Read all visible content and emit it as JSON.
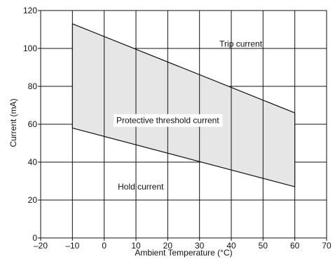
{
  "chart_data": {
    "type": "area",
    "xlabel": "Ambient Temperature (°C)",
    "ylabel": "Current (mA)",
    "xlim": [
      -20,
      70
    ],
    "ylim": [
      0,
      120
    ],
    "x_ticks": [
      "–20",
      "–10",
      "0",
      "10",
      "20",
      "30",
      "40",
      "50",
      "60",
      "70"
    ],
    "x_tick_values": [
      -20,
      -10,
      0,
      10,
      20,
      30,
      40,
      50,
      60,
      70
    ],
    "y_ticks": [
      "0",
      "20",
      "40",
      "60",
      "80",
      "100",
      "120"
    ],
    "y_tick_values": [
      0,
      20,
      40,
      60,
      80,
      100,
      120
    ],
    "grid": true,
    "series": [
      {
        "name": "Trip current",
        "x": [
          -10,
          60
        ],
        "y": [
          113,
          66
        ]
      },
      {
        "name": "Hold current",
        "x": [
          -10,
          60
        ],
        "y": [
          58,
          27
        ]
      }
    ],
    "band": {
      "label": "Protective threshold current",
      "fill": "#e6e6e6"
    },
    "annotations": {
      "trip": {
        "text": "Trip current",
        "x": 43,
        "y": 101
      },
      "band": {
        "text": "Protective threshold current",
        "x": 20,
        "y": 62
      },
      "hold": {
        "text": "Hold current",
        "x": 11.5,
        "y": 25.5
      }
    },
    "colors": {
      "line": "#111111",
      "grid": "#111111",
      "band": "#e6e6e6"
    }
  }
}
